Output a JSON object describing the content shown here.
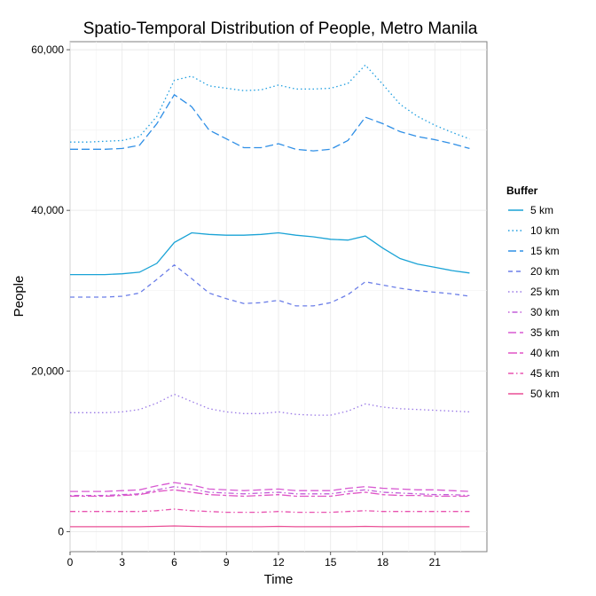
{
  "chart_data": {
    "type": "line",
    "title": "Spatio-Temporal Distribution of People, Metro Manila",
    "xlabel": "Time",
    "ylabel": "People",
    "xlim": [
      0,
      24
    ],
    "ylim": [
      -2500,
      61000
    ],
    "x_ticks": [
      0,
      3,
      6,
      9,
      12,
      15,
      18,
      21
    ],
    "y_ticks": [
      0,
      20000,
      40000,
      60000
    ],
    "y_tick_labels": [
      "0",
      "20,000",
      "40,000",
      "60,000"
    ],
    "grid": true,
    "legend_title": "Buffer",
    "legend_position": "right",
    "x": [
      0,
      1,
      2,
      3,
      4,
      5,
      6,
      7,
      8,
      9,
      10,
      11,
      12,
      13,
      14,
      15,
      16,
      17,
      18,
      19,
      20,
      21,
      22,
      23
    ],
    "series": [
      {
        "name": "5 km",
        "color": "#1aa3d6",
        "dash": "solid",
        "values": [
          32000,
          32000,
          32000,
          32100,
          32300,
          33400,
          36000,
          37200,
          37000,
          36900,
          36900,
          37000,
          37200,
          36900,
          36700,
          36400,
          36300,
          36800,
          35300,
          34000,
          33300,
          32900,
          32500,
          32200
        ]
      },
      {
        "name": "10 km",
        "color": "#1f9ee0",
        "dash": "dotted",
        "values": [
          48500,
          48500,
          48600,
          48700,
          49200,
          51700,
          56200,
          56700,
          55500,
          55200,
          54900,
          55000,
          55600,
          55100,
          55100,
          55200,
          55800,
          58100,
          55700,
          53200,
          51700,
          50600,
          49700,
          48900
        ]
      },
      {
        "name": "15 km",
        "color": "#2f8fe6",
        "dash": "longdash",
        "values": [
          47600,
          47600,
          47600,
          47700,
          48100,
          50800,
          54400,
          52900,
          50000,
          48900,
          47800,
          47800,
          48300,
          47600,
          47400,
          47600,
          48700,
          51600,
          50800,
          49800,
          49200,
          48800,
          48300,
          47700
        ]
      },
      {
        "name": "20 km",
        "color": "#6b7ee8",
        "dash": "dashed",
        "values": [
          29200,
          29200,
          29200,
          29300,
          29700,
          31400,
          33200,
          31500,
          29700,
          29000,
          28400,
          28500,
          28800,
          28100,
          28100,
          28500,
          29500,
          31100,
          30700,
          30300,
          30000,
          29800,
          29600,
          29300
        ]
      },
      {
        "name": "25 km",
        "color": "#9a7ae6",
        "dash": "dotted",
        "values": [
          14800,
          14800,
          14800,
          14900,
          15200,
          16000,
          17100,
          16200,
          15300,
          14900,
          14700,
          14700,
          14900,
          14600,
          14500,
          14500,
          15000,
          15900,
          15500,
          15300,
          15200,
          15100,
          15000,
          14900
        ]
      },
      {
        "name": "30 km",
        "color": "#c25fd9",
        "dash": "dotdash",
        "values": [
          4500,
          4500,
          4500,
          4600,
          4700,
          5200,
          5600,
          5300,
          4900,
          4800,
          4700,
          4800,
          4900,
          4700,
          4700,
          4700,
          5000,
          5200,
          4900,
          4800,
          4700,
          4600,
          4600,
          4500
        ]
      },
      {
        "name": "35 km",
        "color": "#d85ad2",
        "dash": "longdash",
        "values": [
          5000,
          5000,
          5000,
          5100,
          5200,
          5700,
          6100,
          5800,
          5300,
          5200,
          5100,
          5200,
          5300,
          5100,
          5100,
          5100,
          5400,
          5600,
          5400,
          5300,
          5200,
          5200,
          5100,
          5000
        ]
      },
      {
        "name": "40 km",
        "color": "#e053c5",
        "dash": "twodash",
        "values": [
          4400,
          4400,
          4400,
          4500,
          4600,
          5000,
          5200,
          4900,
          4600,
          4500,
          4400,
          4500,
          4600,
          4400,
          4400,
          4400,
          4700,
          4900,
          4600,
          4500,
          4500,
          4400,
          4400,
          4400
        ]
      },
      {
        "name": "45 km",
        "color": "#e853b0",
        "dash": "dashdot",
        "values": [
          2500,
          2500,
          2500,
          2500,
          2500,
          2600,
          2800,
          2600,
          2500,
          2400,
          2400,
          2400,
          2500,
          2400,
          2400,
          2400,
          2500,
          2600,
          2500,
          2500,
          2500,
          2500,
          2500,
          2500
        ]
      },
      {
        "name": "50 km",
        "color": "#ea4f96",
        "dash": "solid",
        "values": [
          600,
          600,
          600,
          600,
          600,
          650,
          700,
          650,
          600,
          600,
          600,
          600,
          650,
          600,
          600,
          600,
          600,
          650,
          600,
          600,
          600,
          600,
          600,
          600
        ]
      }
    ]
  }
}
